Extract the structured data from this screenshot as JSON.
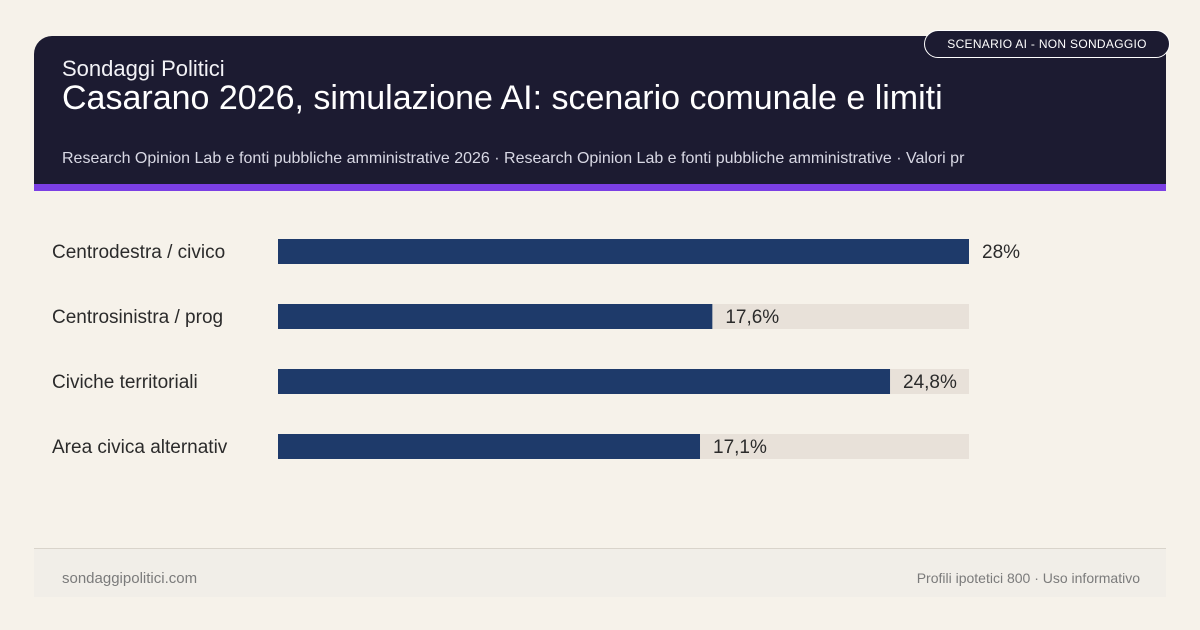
{
  "header": {
    "brand": "Sondaggi Politici",
    "title": "Casarano 2026, simulazione AI: scenario comunale e limiti",
    "subtitle": "Research Opinion Lab e fonti pubbliche amministrative 2026 · Research Opinion Lab e fonti pubbliche amministrative · Valori pr",
    "badge": "SCENARIO AI - NON SONDAGGIO"
  },
  "colors": {
    "header_bg": "#1c1b31",
    "accent": "#7b3fe4",
    "bar": "#1e3a6a",
    "track": "#e8e1d9",
    "background": "#f6f2ea"
  },
  "chart_data": {
    "type": "bar",
    "orientation": "horizontal",
    "categories": [
      "Centrodestra / civico",
      "Centrosinistra / prog",
      "Civiche territoriali",
      "Area civica alternativ"
    ],
    "values": [
      28,
      17.6,
      24.8,
      17.1
    ],
    "value_labels": [
      "28%",
      "17,6%",
      "24,8%",
      "17,1%"
    ],
    "xlim": [
      0,
      28
    ],
    "grid": false,
    "legend": "none"
  },
  "footer": {
    "site": "sondaggipolitici.com",
    "note": "Profili ipotetici 800 · Uso informativo"
  }
}
